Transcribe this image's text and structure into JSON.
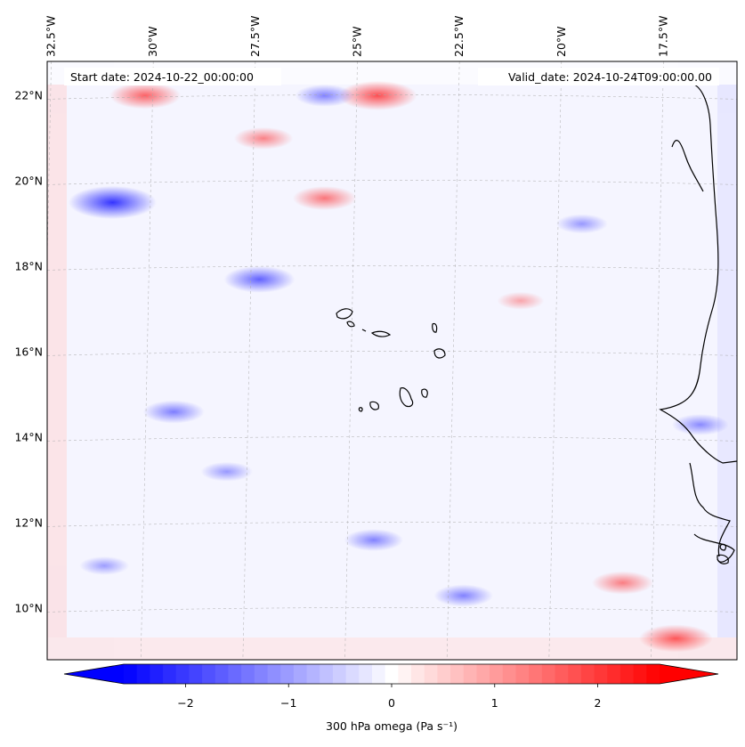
{
  "chart_data": {
    "type": "heatmap",
    "title": "",
    "start_label": "Start date: 2024-10-22_00:00:00",
    "valid_label": "Valid_date: 2024-10-24T09:00:00.00",
    "x_ticks": [
      {
        "lon": -32.5,
        "label": "32.5°W"
      },
      {
        "lon": -30.0,
        "label": "30°W"
      },
      {
        "lon": -27.5,
        "label": "27.5°W"
      },
      {
        "lon": -25.0,
        "label": "25°W"
      },
      {
        "lon": -22.5,
        "label": "22.5°W"
      },
      {
        "lon": -20.0,
        "label": "20°W"
      },
      {
        "lon": -17.5,
        "label": "17.5°W"
      }
    ],
    "y_ticks": [
      {
        "lat": 22,
        "label": "22°N"
      },
      {
        "lat": 20,
        "label": "20°N"
      },
      {
        "lat": 18,
        "label": "18°N"
      },
      {
        "lat": 16,
        "label": "16°N"
      },
      {
        "lat": 14,
        "label": "14°N"
      },
      {
        "lat": 12,
        "label": "12°N"
      },
      {
        "lat": 10,
        "label": "10°N"
      }
    ],
    "lon_range": [
      -32.6,
      -15.7
    ],
    "lat_range": [
      8.8,
      22.8
    ],
    "grid": true,
    "colorbar": {
      "label": "300 hPa omega (Pa s⁻¹)",
      "range": [
        -2.6,
        2.6
      ],
      "ticks": [
        {
          "value": -2,
          "label": "−2"
        },
        {
          "value": -1,
          "label": "−1"
        },
        {
          "value": 0,
          "label": "0"
        },
        {
          "value": 1,
          "label": "1"
        },
        {
          "value": 2,
          "label": "2"
        }
      ],
      "colormap": [
        "#0000ff",
        "#ffffff",
        "#ff0000"
      ],
      "extend": "both",
      "levels": 41
    },
    "field_features": [
      {
        "lon": -24.5,
        "lat": 22.0,
        "value": 1.6
      },
      {
        "lon": -30.2,
        "lat": 22.0,
        "value": 1.3
      },
      {
        "lon": -25.8,
        "lat": 19.6,
        "value": 1.0
      },
      {
        "lon": -27.3,
        "lat": 21.0,
        "value": 0.8
      },
      {
        "lon": -31.0,
        "lat": 19.5,
        "value": -2.0
      },
      {
        "lon": -27.4,
        "lat": 17.7,
        "value": -1.3
      },
      {
        "lon": -29.5,
        "lat": 14.6,
        "value": -0.9
      },
      {
        "lon": -17.2,
        "lat": 9.3,
        "value": 1.4
      },
      {
        "lon": -18.5,
        "lat": 10.6,
        "value": 0.9
      },
      {
        "lon": -22.4,
        "lat": 10.3,
        "value": -0.8
      },
      {
        "lon": -24.6,
        "lat": 11.6,
        "value": -0.8
      },
      {
        "lon": -16.6,
        "lat": 14.3,
        "value": -0.7
      },
      {
        "lon": -19.5,
        "lat": 19.0,
        "value": -0.5
      },
      {
        "lon": -25.8,
        "lat": 22.0,
        "value": -0.8
      },
      {
        "lon": -21.0,
        "lat": 17.2,
        "value": 0.3
      },
      {
        "lon": -28.2,
        "lat": 13.2,
        "value": -0.5
      },
      {
        "lon": -31.2,
        "lat": 11.0,
        "value": -0.4
      }
    ]
  }
}
